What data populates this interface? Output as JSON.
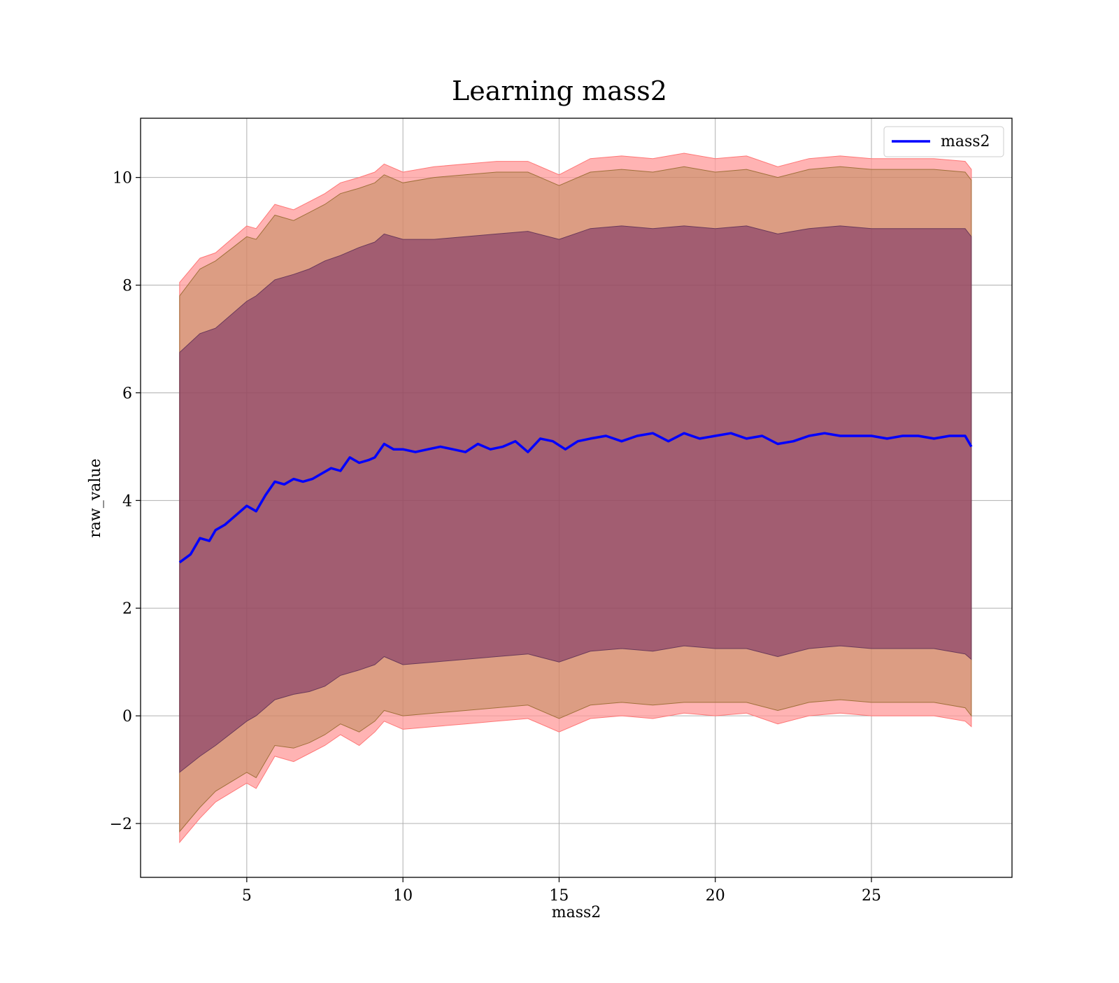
{
  "chart_data": {
    "type": "line",
    "title": "Learning mass2",
    "xlabel": "mass2",
    "ylabel": "raw_value",
    "xlim": [
      1.6,
      29.5
    ],
    "ylim": [
      -3.0,
      11.1
    ],
    "xticks": [
      5,
      10,
      15,
      20,
      25
    ],
    "yticks": [
      -2,
      0,
      2,
      4,
      6,
      8,
      10
    ],
    "xtick_labels": [
      "5",
      "10",
      "15",
      "20",
      "25"
    ],
    "ytick_labels": [
      "−2",
      "0",
      "2",
      "4",
      "6",
      "8",
      "10"
    ],
    "grid": true,
    "legend": {
      "position": "upper right",
      "entries": [
        "mass2"
      ]
    },
    "colors": {
      "line": "#0000ff",
      "band_outer": "#ff9999",
      "band_mid": "#8b6914",
      "band_inner": "#5b0f5b"
    },
    "series": [
      {
        "name": "mass2",
        "x": [
          2.85,
          3.2,
          3.5,
          3.8,
          4.0,
          4.3,
          4.6,
          5.0,
          5.3,
          5.6,
          5.9,
          6.2,
          6.5,
          6.8,
          7.1,
          7.4,
          7.7,
          8.0,
          8.3,
          8.6,
          8.9,
          9.1,
          9.4,
          9.7,
          10.0,
          10.4,
          10.8,
          11.2,
          11.6,
          12.0,
          12.4,
          12.8,
          13.2,
          13.6,
          14.0,
          14.4,
          14.8,
          15.2,
          15.6,
          16.0,
          16.5,
          17.0,
          17.5,
          18.0,
          18.5,
          19.0,
          19.5,
          20.0,
          20.5,
          21.0,
          21.5,
          22.0,
          22.5,
          23.0,
          23.5,
          24.0,
          24.5,
          25.0,
          25.5,
          26.0,
          26.5,
          27.0,
          27.5,
          28.0,
          28.2
        ],
        "y": [
          2.85,
          3.0,
          3.3,
          3.25,
          3.45,
          3.55,
          3.7,
          3.9,
          3.8,
          4.1,
          4.35,
          4.3,
          4.4,
          4.35,
          4.4,
          4.5,
          4.6,
          4.55,
          4.8,
          4.7,
          4.75,
          4.8,
          5.05,
          4.95,
          4.95,
          4.9,
          4.95,
          5.0,
          4.95,
          4.9,
          5.05,
          4.95,
          5.0,
          5.1,
          4.9,
          5.15,
          5.1,
          4.95,
          5.1,
          5.15,
          5.2,
          5.1,
          5.2,
          5.25,
          5.1,
          5.25,
          5.15,
          5.2,
          5.25,
          5.15,
          5.2,
          5.05,
          5.1,
          5.2,
          5.25,
          5.2,
          5.2,
          5.2,
          5.15,
          5.2,
          5.2,
          5.15,
          5.2,
          5.2,
          5.0
        ],
        "band_outer": [
          [
            2.85,
            -2.35,
            8.05
          ],
          [
            3.5,
            -1.9,
            8.5
          ],
          [
            4.0,
            -1.6,
            8.6
          ],
          [
            5.0,
            -1.25,
            9.1
          ],
          [
            5.3,
            -1.35,
            9.05
          ],
          [
            5.9,
            -0.75,
            9.5
          ],
          [
            6.5,
            -0.85,
            9.4
          ],
          [
            7.0,
            -0.7,
            9.55
          ],
          [
            7.5,
            -0.55,
            9.7
          ],
          [
            8.0,
            -0.35,
            9.9
          ],
          [
            8.6,
            -0.55,
            10.0
          ],
          [
            9.1,
            -0.3,
            10.1
          ],
          [
            9.4,
            -0.1,
            10.25
          ],
          [
            10.0,
            -0.25,
            10.1
          ],
          [
            11.0,
            -0.2,
            10.2
          ],
          [
            12.0,
            -0.15,
            10.25
          ],
          [
            13.0,
            -0.1,
            10.3
          ],
          [
            14.0,
            -0.05,
            10.3
          ],
          [
            15.0,
            -0.3,
            10.05
          ],
          [
            16.0,
            -0.05,
            10.35
          ],
          [
            17.0,
            0.0,
            10.4
          ],
          [
            18.0,
            -0.05,
            10.35
          ],
          [
            19.0,
            0.05,
            10.45
          ],
          [
            20.0,
            0.0,
            10.35
          ],
          [
            21.0,
            0.05,
            10.4
          ],
          [
            22.0,
            -0.15,
            10.2
          ],
          [
            23.0,
            0.0,
            10.35
          ],
          [
            24.0,
            0.05,
            10.4
          ],
          [
            25.0,
            0.0,
            10.35
          ],
          [
            26.0,
            0.0,
            10.35
          ],
          [
            27.0,
            0.0,
            10.35
          ],
          [
            28.0,
            -0.1,
            10.3
          ],
          [
            28.2,
            -0.2,
            10.15
          ]
        ],
        "band_mid": [
          [
            2.85,
            -2.15,
            7.8
          ],
          [
            3.5,
            -1.7,
            8.3
          ],
          [
            4.0,
            -1.4,
            8.45
          ],
          [
            5.0,
            -1.05,
            8.9
          ],
          [
            5.3,
            -1.15,
            8.85
          ],
          [
            5.9,
            -0.55,
            9.3
          ],
          [
            6.5,
            -0.6,
            9.2
          ],
          [
            7.0,
            -0.5,
            9.35
          ],
          [
            7.5,
            -0.35,
            9.5
          ],
          [
            8.0,
            -0.15,
            9.7
          ],
          [
            8.6,
            -0.3,
            9.8
          ],
          [
            9.1,
            -0.1,
            9.9
          ],
          [
            9.4,
            0.1,
            10.05
          ],
          [
            10.0,
            0.0,
            9.9
          ],
          [
            11.0,
            0.05,
            10.0
          ],
          [
            12.0,
            0.1,
            10.05
          ],
          [
            13.0,
            0.15,
            10.1
          ],
          [
            14.0,
            0.2,
            10.1
          ],
          [
            15.0,
            -0.05,
            9.85
          ],
          [
            16.0,
            0.2,
            10.1
          ],
          [
            17.0,
            0.25,
            10.15
          ],
          [
            18.0,
            0.2,
            10.1
          ],
          [
            19.0,
            0.25,
            10.2
          ],
          [
            20.0,
            0.25,
            10.1
          ],
          [
            21.0,
            0.25,
            10.15
          ],
          [
            22.0,
            0.1,
            10.0
          ],
          [
            23.0,
            0.25,
            10.15
          ],
          [
            24.0,
            0.3,
            10.2
          ],
          [
            25.0,
            0.25,
            10.15
          ],
          [
            26.0,
            0.25,
            10.15
          ],
          [
            27.0,
            0.25,
            10.15
          ],
          [
            28.0,
            0.15,
            10.1
          ],
          [
            28.2,
            0.0,
            9.95
          ]
        ],
        "band_inner": [
          [
            2.85,
            -1.05,
            6.75
          ],
          [
            3.5,
            -0.75,
            7.1
          ],
          [
            4.0,
            -0.55,
            7.2
          ],
          [
            5.0,
            -0.1,
            7.7
          ],
          [
            5.3,
            0.0,
            7.8
          ],
          [
            5.9,
            0.3,
            8.1
          ],
          [
            6.5,
            0.4,
            8.2
          ],
          [
            7.0,
            0.45,
            8.3
          ],
          [
            7.5,
            0.55,
            8.45
          ],
          [
            8.0,
            0.75,
            8.55
          ],
          [
            8.6,
            0.85,
            8.7
          ],
          [
            9.1,
            0.95,
            8.8
          ],
          [
            9.4,
            1.1,
            8.95
          ],
          [
            10.0,
            0.95,
            8.85
          ],
          [
            11.0,
            1.0,
            8.85
          ],
          [
            12.0,
            1.05,
            8.9
          ],
          [
            13.0,
            1.1,
            8.95
          ],
          [
            14.0,
            1.15,
            9.0
          ],
          [
            15.0,
            1.0,
            8.85
          ],
          [
            16.0,
            1.2,
            9.05
          ],
          [
            17.0,
            1.25,
            9.1
          ],
          [
            18.0,
            1.2,
            9.05
          ],
          [
            19.0,
            1.3,
            9.1
          ],
          [
            20.0,
            1.25,
            9.05
          ],
          [
            21.0,
            1.25,
            9.1
          ],
          [
            22.0,
            1.1,
            8.95
          ],
          [
            23.0,
            1.25,
            9.05
          ],
          [
            24.0,
            1.3,
            9.1
          ],
          [
            25.0,
            1.25,
            9.05
          ],
          [
            26.0,
            1.25,
            9.05
          ],
          [
            27.0,
            1.25,
            9.05
          ],
          [
            28.0,
            1.15,
            9.05
          ],
          [
            28.2,
            1.05,
            8.9
          ]
        ]
      }
    ]
  }
}
